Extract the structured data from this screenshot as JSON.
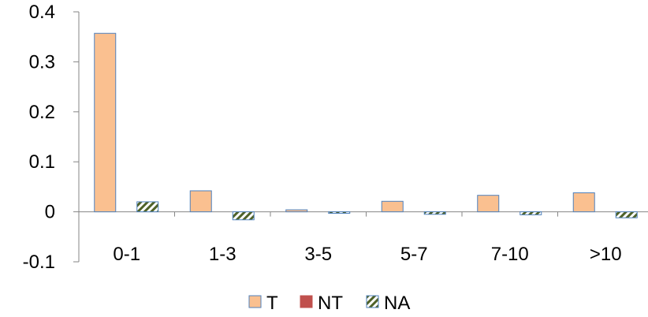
{
  "chart_data": {
    "type": "bar",
    "categories": [
      "0-1",
      "1-3",
      "3-5",
      "5-7",
      "7-10",
      ">10"
    ],
    "series": [
      {
        "name": "T",
        "values": [
          0.357,
          0.042,
          0.004,
          0.021,
          0.033,
          0.038
        ],
        "color": "#FAC090",
        "stroke": "#4F81BD",
        "pattern": "solid"
      },
      {
        "name": "NT",
        "values": [
          0,
          0,
          0,
          0,
          0,
          0
        ],
        "color": "#C0504D",
        "stroke": "#C0504D",
        "pattern": "solid"
      },
      {
        "name": "NA",
        "values": [
          0.02,
          -0.016,
          -0.003,
          -0.005,
          -0.006,
          -0.012
        ],
        "color": "#4F6228",
        "stroke": "#4F81BD",
        "pattern": "diagonal-hatch"
      }
    ],
    "title": "",
    "xlabel": "",
    "ylabel": "",
    "ylim": [
      -0.1,
      0.4
    ],
    "yticks": [
      "-0.1",
      "0",
      "0.1",
      "0.2",
      "0.3",
      "0.4"
    ],
    "ytick_values": [
      -0.1,
      0,
      0.1,
      0.2,
      0.3,
      0.4
    ],
    "grid": false,
    "legend_position": "bottom"
  }
}
